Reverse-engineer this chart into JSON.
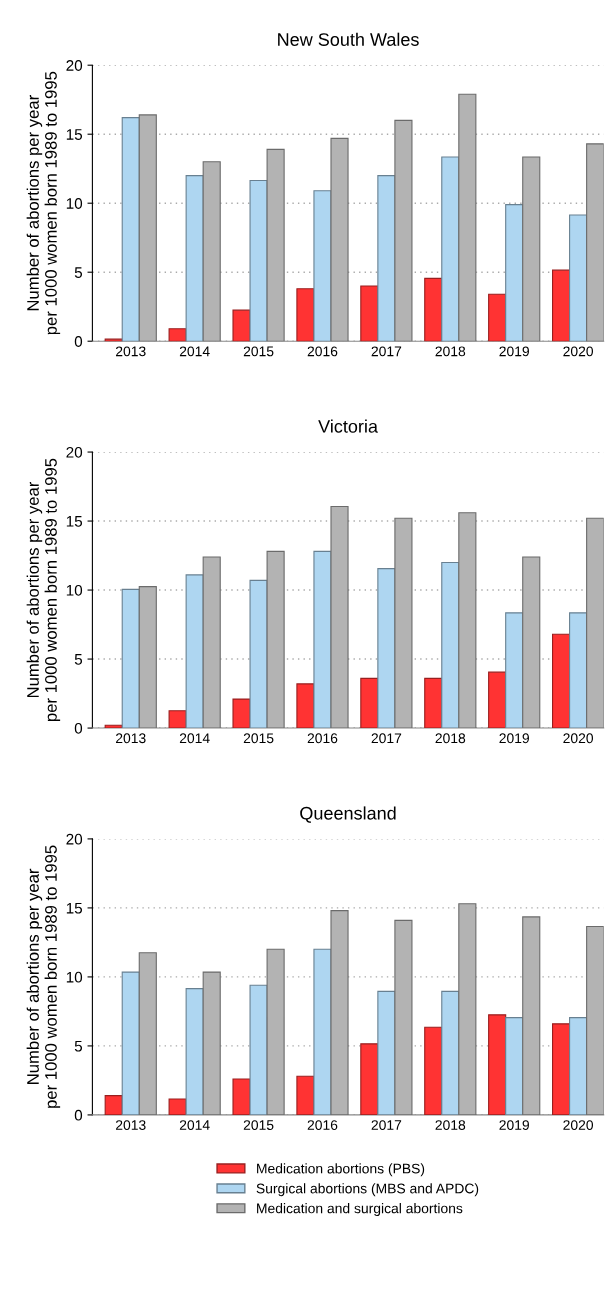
{
  "chart_data": [
    {
      "type": "bar",
      "title": "New South Wales",
      "ylabel": "Number of abortions per year\nper 1000 women born 1989 to 1995",
      "categories": [
        "2013",
        "2014",
        "2015",
        "2016",
        "2017",
        "2018",
        "2019",
        "2020"
      ],
      "ylim": [
        0,
        20
      ],
      "yticks": [
        0,
        5,
        10,
        15,
        20
      ],
      "grid": "y",
      "series": [
        {
          "color": "#ff3333",
          "values": [
            0.15,
            0.9,
            2.25,
            3.8,
            4.0,
            4.55,
            3.4,
            5.15
          ]
        },
        {
          "color": "#aed6f1",
          "values": [
            16.2,
            12.0,
            11.65,
            10.9,
            12.0,
            13.35,
            9.9,
            9.15
          ]
        },
        {
          "color": "#b3b3b3",
          "values": [
            16.4,
            13.0,
            13.9,
            14.7,
            16.0,
            17.9,
            13.35,
            14.3
          ]
        }
      ]
    },
    {
      "type": "bar",
      "title": "Victoria",
      "ylabel": "Number of abortions per year\nper 1000 women born 1989 to 1995",
      "categories": [
        "2013",
        "2014",
        "2015",
        "2016",
        "2017",
        "2018",
        "2019",
        "2020"
      ],
      "ylim": [
        0,
        20
      ],
      "yticks": [
        0,
        5,
        10,
        15,
        20
      ],
      "grid": "y",
      "series": [
        {
          "color": "#ff3333",
          "values": [
            0.2,
            1.25,
            2.1,
            3.2,
            3.6,
            3.6,
            4.05,
            6.8
          ]
        },
        {
          "color": "#aed6f1",
          "values": [
            10.05,
            11.1,
            10.7,
            12.8,
            11.55,
            12.0,
            8.35,
            8.35
          ]
        },
        {
          "color": "#b3b3b3",
          "values": [
            10.25,
            12.4,
            12.8,
            16.05,
            15.2,
            15.6,
            12.4,
            15.2
          ]
        }
      ]
    },
    {
      "type": "bar",
      "title": "Queensland",
      "ylabel": "Number of abortions per year\nper 1000 women born 1989 to 1995",
      "categories": [
        "2013",
        "2014",
        "2015",
        "2016",
        "2017",
        "2018",
        "2019",
        "2020"
      ],
      "ylim": [
        0,
        20
      ],
      "yticks": [
        0,
        5,
        10,
        15,
        20
      ],
      "grid": "y",
      "legend": "bottom",
      "series": [
        {
          "name": "Medication abortions (PBS)",
          "color": "#ff3333",
          "values": [
            1.4,
            1.15,
            2.6,
            2.8,
            5.15,
            6.35,
            7.25,
            6.6
          ]
        },
        {
          "name": "Surgical abortions (MBS and APDC)",
          "color": "#aed6f1",
          "values": [
            10.35,
            9.15,
            9.4,
            12.0,
            8.95,
            8.95,
            7.05,
            7.05
          ]
        },
        {
          "name": "Medication and surgical abortions",
          "color": "#b3b3b3",
          "values": [
            11.75,
            10.35,
            12.0,
            14.8,
            14.1,
            15.3,
            14.35,
            13.65
          ]
        }
      ]
    }
  ]
}
